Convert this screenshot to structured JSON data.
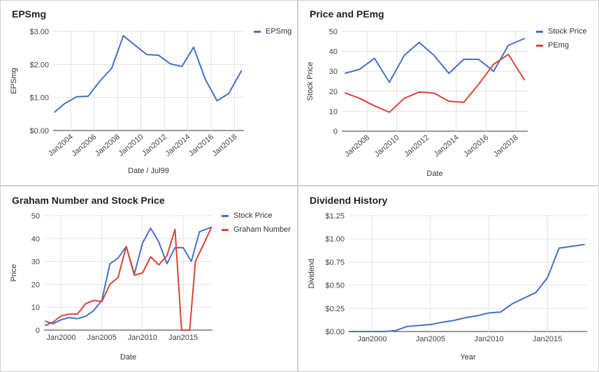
{
  "chart_data": [
    {
      "type": "line",
      "title": "EPSmg",
      "xlabel": "Date / Jul99",
      "ylabel": "EPSmg",
      "x_kind": "year",
      "xlim": [
        2002.5,
        2018.8
      ],
      "ylim": [
        0,
        3
      ],
      "yticks": [
        0,
        1,
        2,
        3
      ],
      "ytick_labels": [
        "$0.00",
        "$1.00",
        "$2.00",
        "$3.00"
      ],
      "xticks": [
        2004,
        2006,
        2008,
        2010,
        2012,
        2014,
        2016,
        2018
      ],
      "xtick_labels": [
        "Jan2004",
        "Jan2006",
        "Jan2008",
        "Jan2010",
        "Jan2012",
        "Jan2014",
        "Jan2016",
        "Jan2018"
      ],
      "xtick_rotate": true,
      "grid": true,
      "legend": "right",
      "series": [
        {
          "name": "EPSmg",
          "color": "#4472C4",
          "x": [
            2002.6,
            2003.5,
            2004.5,
            2005.5,
            2006.5,
            2007.5,
            2008.5,
            2009.5,
            2010.5,
            2011.5,
            2012.5,
            2013.5,
            2014.5,
            2015.5,
            2016.5,
            2017.5,
            2018.6
          ],
          "y": [
            0.55,
            0.82,
            1.02,
            1.04,
            1.5,
            1.88,
            2.87,
            2.58,
            2.3,
            2.28,
            2.02,
            1.94,
            2.52,
            1.55,
            0.9,
            1.12,
            1.82
          ]
        }
      ]
    },
    {
      "type": "line",
      "title": "Price and PEmg",
      "xlabel": "Date",
      "ylabel": "Stock Price",
      "x_kind": "year",
      "xlim": [
        2006.3,
        2018.8
      ],
      "ylim": [
        0,
        50
      ],
      "yticks": [
        0,
        10,
        20,
        30,
        40,
        50
      ],
      "ytick_labels": [
        "0",
        "10",
        "20",
        "30",
        "40",
        "50"
      ],
      "xticks": [
        2008,
        2010,
        2012,
        2014,
        2016,
        2018
      ],
      "xtick_labels": [
        "Jan2008",
        "Jan2010",
        "Jan2012",
        "Jan2014",
        "Jan2016",
        "Jan2018"
      ],
      "xtick_rotate": true,
      "grid": true,
      "legend": "right",
      "series": [
        {
          "name": "Stock Price",
          "color": "#4472C4",
          "x": [
            2006.5,
            2007.5,
            2008.5,
            2009.5,
            2010.5,
            2011.5,
            2012.5,
            2013.5,
            2014.5,
            2015.5,
            2016.5,
            2017.5,
            2018.6
          ],
          "y": [
            29,
            31,
            36.5,
            24.5,
            38,
            44.5,
            38,
            29,
            36,
            36,
            30,
            43,
            46.5
          ]
        },
        {
          "name": "PEmg",
          "color": "#DB4437",
          "x": [
            2006.5,
            2007.5,
            2008.5,
            2009.5,
            2010.5,
            2011.5,
            2012.5,
            2013.5,
            2014.5,
            2015.5,
            2016.5,
            2017.5,
            2018.6
          ],
          "y": [
            19.2,
            16.5,
            12.7,
            9.5,
            16.5,
            19.6,
            19.1,
            15,
            14.5,
            23.5,
            33.5,
            38.5,
            25.5
          ]
        }
      ]
    },
    {
      "type": "line",
      "title": "Graham Number and Stock Price",
      "xlabel": "Date",
      "ylabel": "Price",
      "x_kind": "year",
      "xlim": [
        1997.9,
        2018.6
      ],
      "ylim": [
        0,
        50
      ],
      "yticks": [
        0,
        10,
        20,
        30,
        40,
        50
      ],
      "ytick_labels": [
        "0",
        "10",
        "20",
        "30",
        "40",
        "50"
      ],
      "xticks": [
        2000,
        2005,
        2010,
        2015
      ],
      "xtick_labels": [
        "Jan2000",
        "Jan2005",
        "Jan2010",
        "Jan2015"
      ],
      "xtick_rotate": false,
      "grid": true,
      "legend": "right",
      "series": [
        {
          "name": "Stock Price",
          "color": "#4472C4",
          "x": [
            1998,
            1999,
            2000,
            2001,
            2002,
            2003,
            2004,
            2005,
            2006,
            2007,
            2008,
            2009,
            2010,
            2011,
            2012,
            2013,
            2014,
            2015,
            2016,
            2017,
            2018.5
          ],
          "y": [
            4,
            2.8,
            4.5,
            5.5,
            5,
            6,
            8.5,
            13,
            29,
            31.5,
            36.5,
            24.5,
            38,
            44.5,
            38.5,
            29,
            36,
            36,
            30,
            43,
            45
          ]
        },
        {
          "name": "Graham Number",
          "color": "#DB4437",
          "x": [
            1998,
            1999,
            2000,
            2001,
            2002,
            2003,
            2004,
            2005,
            2006,
            2007,
            2008,
            2009,
            2010,
            2011,
            2012,
            2013,
            2014,
            2014.8,
            2015.8,
            2016.5,
            2018.5
          ],
          "y": [
            2,
            3.5,
            6.2,
            7,
            7,
            11.5,
            13,
            12.5,
            20,
            23,
            36.5,
            24,
            25,
            32,
            28.5,
            32.5,
            44,
            0,
            0,
            30,
            45
          ]
        }
      ]
    },
    {
      "type": "line",
      "title": "Dividend History",
      "xlabel": "Year",
      "ylabel": "Dividend",
      "x_kind": "year",
      "xlim": [
        1998,
        2018.4
      ],
      "ylim": [
        0,
        1.25
      ],
      "yticks": [
        0,
        0.25,
        0.5,
        0.75,
        1,
        1.25
      ],
      "ytick_labels": [
        "$0.00",
        "$0.25",
        "$0.50",
        "$0.75",
        "$1.00",
        "$1.25"
      ],
      "xticks": [
        2000,
        2005,
        2010,
        2015
      ],
      "xtick_labels": [
        "Jan2000",
        "Jan2005",
        "Jan2010",
        "Jan2015"
      ],
      "xtick_rotate": false,
      "grid": true,
      "legend": "none",
      "series": [
        {
          "color": "#4472C4",
          "x": [
            1998,
            1999,
            2000,
            2001,
            2002,
            2003,
            2004,
            2005,
            2006,
            2007,
            2008,
            2009,
            2010,
            2011,
            2012,
            2013,
            2014,
            2015,
            2016,
            2018.2
          ],
          "y": [
            0,
            0,
            0,
            0,
            0.01,
            0.055,
            0.065,
            0.075,
            0.1,
            0.12,
            0.15,
            0.17,
            0.2,
            0.21,
            0.3,
            0.36,
            0.42,
            0.58,
            0.9,
            0.94
          ]
        }
      ]
    }
  ]
}
